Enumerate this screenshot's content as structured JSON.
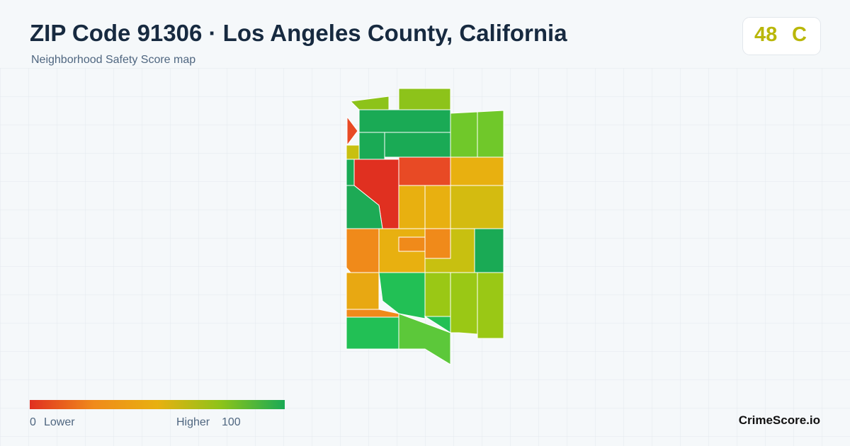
{
  "header": {
    "title": "ZIP Code 91306 · Los Angeles County, California",
    "subtitle": "Neighborhood Safety Score map"
  },
  "score": {
    "value": 48,
    "grade": "C"
  },
  "legend": {
    "min": 0,
    "min_label": "Lower",
    "max_label": "Higher",
    "max": 100
  },
  "brand": "CrimeScore.io"
}
